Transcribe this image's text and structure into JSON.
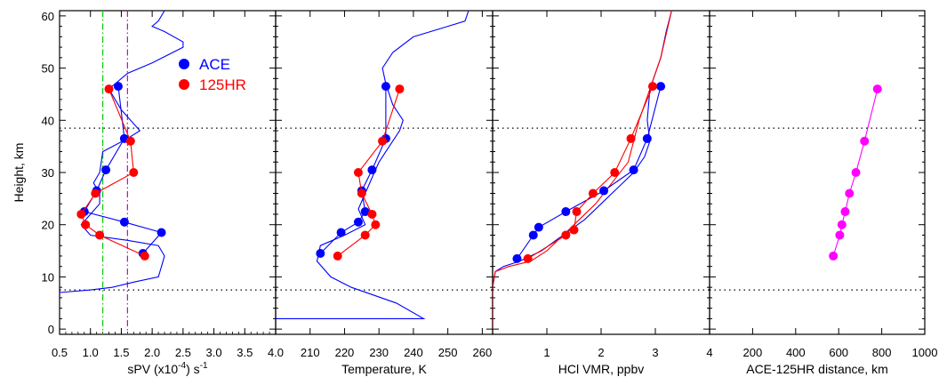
{
  "chart_data": [
    {
      "type": "line",
      "panel": "spv",
      "xlabel": "sPV (x10",
      "xlabel_sup": "-4",
      "xlabel_tail": ") s",
      "xlabel_sup2": "-1",
      "ylabel": "Height, km",
      "xlim": [
        0.5,
        4.0
      ],
      "ylim": [
        -1,
        61
      ],
      "xticks": [
        "0.5",
        "1.0",
        "1.5",
        "2.0",
        "2.5",
        "3.0",
        "3.5",
        "4.0"
      ],
      "yticks": [
        "0",
        "10",
        "20",
        "30",
        "40",
        "50",
        "60"
      ],
      "hlines": [
        38.5,
        7.5
      ],
      "vlines": [
        {
          "x": 1.2,
          "color": "#00cc00"
        },
        {
          "x": 1.6,
          "color": "#cc00cc"
        }
      ],
      "legend": [
        {
          "name": "ACE",
          "color": "#0000ff"
        },
        {
          "name": "125HR",
          "color": "#ff0000"
        }
      ],
      "profile": {
        "color": "#0000ff",
        "x": [
          0.5,
          1.0,
          1.35,
          1.7,
          2.1,
          2.15,
          2.2,
          2.1,
          1.6,
          1.0,
          0.85,
          1.0,
          1.15,
          1.15,
          1.05,
          1.15,
          1.2,
          1.6,
          1.8,
          1.5,
          1.3,
          1.6,
          2.0,
          2.5,
          2.5,
          2.2,
          2.0,
          2.1,
          2.2
        ],
        "y": [
          7,
          7.5,
          8,
          9,
          10,
          12,
          14,
          16,
          17,
          18,
          20,
          22,
          24,
          26,
          28,
          30,
          34,
          36.5,
          38,
          42,
          46,
          49,
          51,
          54,
          55,
          57,
          58,
          59,
          61
        ]
      },
      "series": [
        {
          "name": "ACE",
          "color": "#0000ff",
          "x": [
            1.45,
            1.55,
            1.25,
            1.1,
            0.9,
            1.55,
            2.15,
            1.85
          ],
          "y": [
            46.5,
            36.5,
            30.5,
            26.5,
            22.5,
            20.5,
            18.5,
            14.5
          ]
        },
        {
          "name": "125HR",
          "color": "#ff0000",
          "x": [
            1.3,
            1.65,
            1.7,
            1.08,
            0.85,
            0.92,
            1.15,
            1.88
          ],
          "y": [
            46,
            36,
            30,
            26,
            22,
            20,
            18,
            14
          ]
        }
      ]
    },
    {
      "type": "line",
      "panel": "temperature",
      "xlabel": "Temperature, K",
      "xlim": [
        200,
        263
      ],
      "ylim": [
        -1,
        61
      ],
      "xticks": [
        "210",
        "220",
        "230",
        "240",
        "250",
        "260"
      ],
      "xtick_values": [
        210,
        220,
        230,
        240,
        250,
        260
      ],
      "hlines": [
        38.5,
        7.5
      ],
      "profile": {
        "color": "#0000ff",
        "x": [
          200,
          243,
          235,
          222,
          216,
          212,
          213,
          220,
          226,
          224,
          226,
          228,
          230,
          233,
          236,
          237,
          234,
          232,
          231,
          234,
          240,
          250,
          255,
          256
        ],
        "y": [
          2,
          2,
          5,
          8,
          10,
          13,
          16,
          18,
          20,
          23,
          26,
          29,
          32,
          35,
          38,
          40,
          43,
          47,
          50,
          53,
          56,
          58,
          59,
          61
        ]
      },
      "series": [
        {
          "name": "ACE",
          "color": "#0000ff",
          "x": [
            232,
            232,
            228,
            225,
            226,
            224,
            219,
            213
          ],
          "y": [
            46.5,
            36.5,
            30.5,
            26.5,
            22.5,
            20.5,
            18.5,
            14.5
          ]
        },
        {
          "name": "125HR",
          "color": "#ff0000",
          "x": [
            236,
            231,
            224,
            225,
            228,
            229,
            226,
            218
          ],
          "y": [
            46,
            36,
            30,
            26,
            22,
            20,
            18,
            14
          ]
        }
      ]
    },
    {
      "type": "line",
      "panel": "hcl",
      "xlabel": "HCl VMR, ppbv",
      "xlim": [
        0,
        4
      ],
      "ylim": [
        -1,
        61
      ],
      "xticks": [
        "1",
        "2",
        "3",
        "4"
      ],
      "xtick_values": [
        1,
        2,
        3,
        4
      ],
      "hlines": [
        38.5,
        7.5
      ],
      "profile": {
        "color": "#0000ff",
        "x": [
          0.0,
          0.0,
          0.05,
          0.2,
          0.5,
          0.9,
          1.3,
          1.7,
          2.0,
          2.3,
          2.6,
          2.8,
          2.9,
          2.85,
          2.9,
          3.1,
          3.2,
          3.3
        ],
        "y": [
          0,
          8,
          11,
          12,
          13,
          15,
          18,
          21,
          24,
          27,
          30,
          33,
          36,
          40,
          46,
          52,
          57,
          61
        ]
      },
      "profile2": {
        "color": "#ff0000",
        "x": [
          0.0,
          0.0,
          0.05,
          0.3,
          0.7,
          1.0,
          1.3,
          1.6,
          1.9,
          2.2,
          2.5,
          2.6,
          2.7,
          2.9,
          3.1,
          3.3
        ],
        "y": [
          0,
          8,
          11,
          12,
          13,
          15,
          18,
          21,
          24,
          28,
          32,
          36,
          40,
          46,
          52,
          61
        ]
      },
      "series": [
        {
          "name": "ACE",
          "color": "#0000ff",
          "x": [
            3.1,
            2.85,
            2.6,
            2.05,
            1.35,
            0.85,
            0.75,
            0.45
          ],
          "y": [
            46.5,
            36.5,
            30.5,
            26.5,
            22.5,
            19.5,
            18,
            13.5
          ]
        },
        {
          "name": "125HR",
          "color": "#ff0000",
          "x": [
            2.95,
            2.55,
            2.25,
            1.85,
            1.55,
            1.5,
            1.35,
            0.65
          ],
          "y": [
            46.5,
            36.5,
            30,
            26,
            22.5,
            19,
            18,
            13.5
          ]
        }
      ]
    },
    {
      "type": "line",
      "panel": "distance",
      "xlabel": "ACE-125HR distance, km",
      "xlim": [
        0,
        1000
      ],
      "ylim": [
        -1,
        61
      ],
      "xticks": [
        "200",
        "400",
        "600",
        "800",
        "1000"
      ],
      "xtick_values": [
        200,
        400,
        600,
        800,
        1000
      ],
      "hlines": [
        38.5,
        7.5
      ],
      "series": [
        {
          "name": "distance",
          "color": "#ff00ff",
          "x": [
            780,
            720,
            680,
            650,
            630,
            615,
            605,
            575
          ],
          "y": [
            46,
            36,
            30,
            26,
            22.5,
            20,
            18,
            14
          ]
        }
      ]
    }
  ]
}
